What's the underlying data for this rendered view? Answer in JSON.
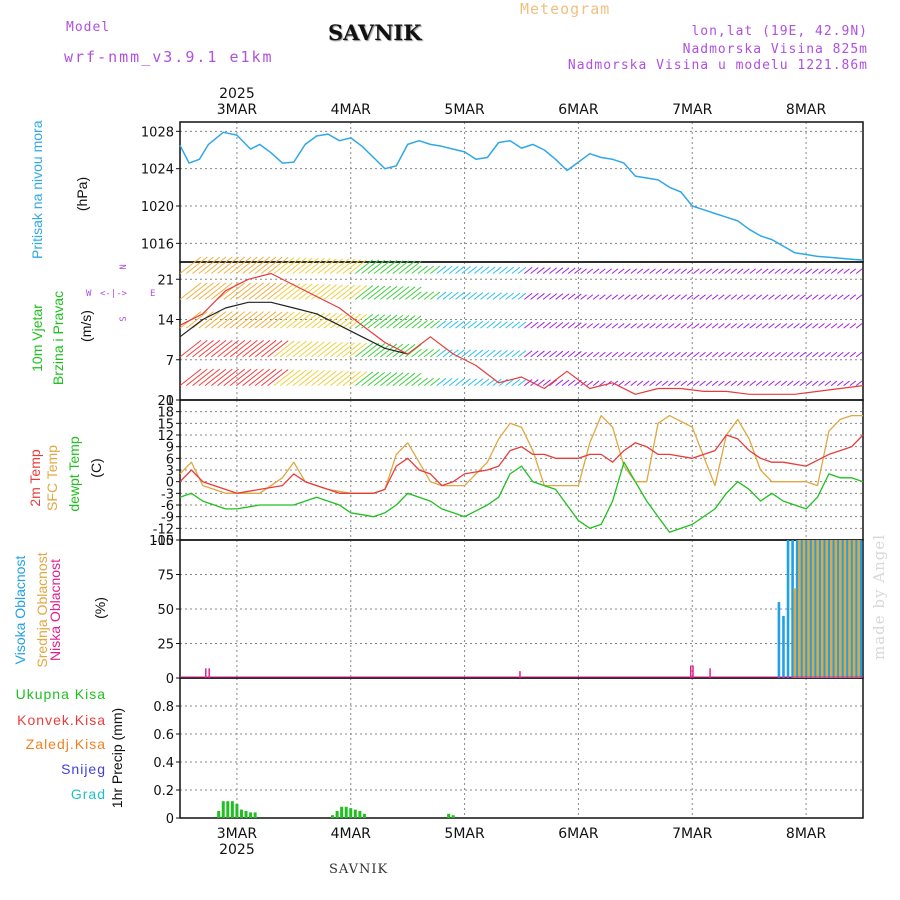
{
  "header": {
    "title": "SAVNIK",
    "meteogram": "Meteogram",
    "model_label": "Model",
    "model_name": "wrf-nmm_v3.9.1 e1km",
    "lonlat": "lon,lat (19E, 42.9N)",
    "elevation": "Nadmorska Visina 825m",
    "model_elevation": "Nadmorska Visina u modelu 1221.86m"
  },
  "footer": "SAVNIK",
  "made_by": "made by Angel",
  "x_axis": {
    "year": "2025",
    "day_labels": [
      "3MAR",
      "4MAR",
      "5MAR",
      "6MAR",
      "7MAR",
      "8MAR"
    ]
  },
  "panel_labels": {
    "pressure": [
      "Pritisak na nivou mora",
      "(hPa)"
    ],
    "wind": [
      "10m Vjetar",
      "Brzina i Pravac",
      "(m/s)"
    ],
    "compass": {
      "n": "N",
      "s": "S",
      "w": "W",
      "e": "E"
    },
    "temp": [
      "2m Temp",
      "SFC Temp",
      "dewpt Temp",
      "(C)"
    ],
    "cloud": [
      "Visoka Oblacnost",
      "Srednja Oblacnost",
      "Niska Oblacnost",
      "(%)"
    ],
    "precip": [
      "Ukupna Kisa",
      "Konvek.Kisa",
      "Zaledj.Kisa",
      "Snijeg",
      "Grad"
    ],
    "precip_axis": "1hr Precip (mm)"
  },
  "colors": {
    "pressure": "#30a8e8",
    "temp2m": "#e83c3c",
    "sfc": "#e0a840",
    "dewpt": "#20c020",
    "cloud_high": "#1fa0e8",
    "cloud_mid": "#e0a840",
    "cloud_low": "#e02090",
    "precip_total": "#20c020",
    "precip_conv": "#e83c3c",
    "precip_frz": "#f08020",
    "snow": "#4040e0",
    "hail": "#20c0c0",
    "title_purple": "#b050e0"
  },
  "chart_data": [
    {
      "type": "line",
      "name": "pressure",
      "ylabel": "Pritisak na nivou mora (hPa)",
      "ylim": [
        1014,
        1029
      ],
      "yticks": [
        1016,
        1020,
        1024,
        1028
      ],
      "x_unit": "days since 3MAR 00UTC",
      "xlim": [
        -0.5,
        5.5
      ],
      "series": [
        {
          "name": "Pritisak na nivou mora",
          "x": [
            -0.5,
            -0.42,
            -0.33,
            -0.25,
            -0.12,
            0,
            0.12,
            0.2,
            0.3,
            0.4,
            0.5,
            0.6,
            0.7,
            0.8,
            0.9,
            1.0,
            1.1,
            1.2,
            1.3,
            1.4,
            1.5,
            1.6,
            1.7,
            1.8,
            1.9,
            2.0,
            2.1,
            2.2,
            2.3,
            2.4,
            2.5,
            2.6,
            2.7,
            2.8,
            2.9,
            3.0,
            3.1,
            3.2,
            3.3,
            3.4,
            3.5,
            3.6,
            3.7,
            3.8,
            3.9,
            4.0,
            4.1,
            4.2,
            4.3,
            4.4,
            4.5,
            4.6,
            4.7,
            4.8,
            4.9,
            5.0,
            5.1,
            5.2,
            5.3,
            5.4,
            5.5
          ],
          "y": [
            1026.5,
            1024.6,
            1025.0,
            1026.6,
            1027.9,
            1027.6,
            1026.1,
            1026.6,
            1025.7,
            1024.6,
            1024.7,
            1026.6,
            1027.5,
            1027.7,
            1027.0,
            1027.3,
            1026.4,
            1025.2,
            1024.0,
            1024.3,
            1026.6,
            1027.0,
            1026.6,
            1026.4,
            1026.1,
            1025.8,
            1025.0,
            1025.2,
            1026.8,
            1027.0,
            1026.2,
            1026.6,
            1026.0,
            1025.0,
            1023.8,
            1024.7,
            1025.6,
            1025.2,
            1025.0,
            1024.6,
            1023.2,
            1023.0,
            1022.8,
            1022.0,
            1021.5,
            1020.0,
            1019.6,
            1019.2,
            1018.8,
            1018.4,
            1017.5,
            1016.8,
            1016.4,
            1015.7,
            1015.0,
            1014.8,
            1014.6,
            1014.5,
            1014.4,
            1014.3,
            1014.2
          ]
        }
      ]
    },
    {
      "type": "line",
      "name": "wind",
      "ylabel": "10m Vjetar Brzina i Pravac (m/s)",
      "ylim": [
        0,
        24
      ],
      "yticks": [
        0,
        7,
        14,
        21
      ],
      "xlim": [
        -0.5,
        5.5
      ],
      "series": [
        {
          "name": "speed",
          "x": [
            -0.5,
            -0.3,
            -0.1,
            0.1,
            0.3,
            0.5,
            0.7,
            0.9,
            1.1,
            1.3,
            1.5,
            1.7,
            1.9,
            2.1,
            2.3,
            2.5,
            2.7,
            2.9,
            3.1,
            3.3,
            3.5,
            3.7,
            3.9,
            4.1,
            4.3,
            4.5,
            4.7,
            4.9,
            5.1,
            5.3,
            5.5
          ],
          "y": [
            13,
            15,
            19,
            21,
            22,
            20,
            18,
            16,
            13,
            10,
            8,
            11,
            8,
            6,
            3,
            4,
            2,
            5,
            2,
            3,
            1,
            2,
            2,
            1.5,
            1.5,
            1,
            1,
            1,
            1.5,
            2,
            2.5
          ]
        },
        {
          "name": "gust",
          "x": [
            -0.5,
            -0.3,
            -0.1,
            0.1,
            0.3,
            0.5,
            0.7,
            0.9,
            1.1,
            1.3,
            1.5
          ],
          "y": [
            11,
            14,
            16,
            17,
            17,
            16,
            15,
            13,
            11,
            9,
            8
          ]
        }
      ]
    },
    {
      "type": "line",
      "name": "temperature",
      "ylabel": "(C)",
      "ylim": [
        -15,
        21
      ],
      "yticks": [
        -15,
        -12,
        -9,
        -6,
        -3,
        0,
        3,
        6,
        9,
        12,
        15,
        18,
        21
      ],
      "xlim": [
        -0.5,
        5.5
      ],
      "series": [
        {
          "name": "2m Temp",
          "x": [
            -0.5,
            -0.4,
            -0.3,
            -0.2,
            -0.1,
            0,
            0.2,
            0.4,
            0.5,
            0.6,
            0.7,
            0.8,
            0.9,
            1.0,
            1.2,
            1.3,
            1.4,
            1.5,
            1.6,
            1.7,
            1.8,
            1.9,
            2.0,
            2.2,
            2.3,
            2.4,
            2.5,
            2.6,
            2.7,
            2.8,
            3.0,
            3.1,
            3.2,
            3.3,
            3.4,
            3.5,
            3.6,
            3.7,
            3.8,
            4.0,
            4.2,
            4.3,
            4.4,
            4.5,
            4.6,
            4.7,
            4.8,
            5.0,
            5.2,
            5.3,
            5.4,
            5.5
          ],
          "y": [
            0,
            3,
            0,
            -1,
            -2,
            -3,
            -2,
            -1,
            2,
            0,
            -1,
            -2,
            -3,
            -3,
            -3,
            -2,
            4,
            6,
            3,
            2,
            -1,
            0,
            2,
            3,
            4,
            8,
            9,
            7,
            7,
            6,
            6,
            7,
            7,
            5,
            8,
            10,
            9,
            7,
            7,
            6,
            8,
            12,
            11,
            8,
            6,
            5,
            5,
            4,
            7,
            8,
            9,
            12
          ]
        },
        {
          "name": "SFC Temp",
          "x": [
            -0.5,
            -0.4,
            -0.3,
            -0.2,
            -0.1,
            0,
            0.2,
            0.3,
            0.4,
            0.5,
            0.6,
            0.7,
            0.8,
            1.0,
            1.2,
            1.3,
            1.4,
            1.5,
            1.6,
            1.7,
            1.8,
            1.9,
            2.0,
            2.2,
            2.3,
            2.4,
            2.5,
            2.6,
            2.7,
            2.8,
            3.0,
            3.1,
            3.2,
            3.3,
            3.4,
            3.5,
            3.6,
            3.7,
            3.8,
            4.0,
            4.2,
            4.3,
            4.4,
            4.5,
            4.6,
            4.7,
            4.8,
            5.0,
            5.1,
            5.2,
            5.3,
            5.4,
            5.5
          ],
          "y": [
            2,
            5,
            -1,
            -2,
            -3,
            -3,
            -3,
            -1,
            1,
            5,
            0,
            -1,
            -2,
            -3,
            -3,
            -2,
            7,
            10,
            5,
            0,
            -1,
            -1,
            -1,
            5,
            11,
            15,
            14,
            8,
            -1,
            -1,
            -1,
            10,
            17,
            14,
            4,
            0,
            0,
            15,
            17,
            14,
            -1,
            12,
            16,
            11,
            3,
            0,
            0,
            0,
            -1,
            13,
            16,
            17,
            17
          ]
        },
        {
          "name": "dewpt Temp",
          "x": [
            -0.5,
            -0.4,
            -0.3,
            -0.2,
            -0.1,
            0,
            0.2,
            0.4,
            0.5,
            0.6,
            0.7,
            0.8,
            0.9,
            1.0,
            1.2,
            1.3,
            1.4,
            1.5,
            1.6,
            1.7,
            1.8,
            1.9,
            2.0,
            2.2,
            2.3,
            2.4,
            2.5,
            2.6,
            2.7,
            2.8,
            3.0,
            3.1,
            3.2,
            3.3,
            3.4,
            3.5,
            3.6,
            3.7,
            3.8,
            4.0,
            4.2,
            4.3,
            4.4,
            4.5,
            4.6,
            4.7,
            4.8,
            5.0,
            5.1,
            5.2,
            5.3,
            5.4,
            5.5
          ],
          "y": [
            -4,
            -3,
            -5,
            -6,
            -7,
            -7,
            -6,
            -6,
            -6,
            -5,
            -4,
            -5,
            -6,
            -8,
            -9,
            -8,
            -6,
            -3,
            -4,
            -5,
            -7,
            -8,
            -9,
            -6,
            -4,
            2,
            4,
            0,
            -1,
            -2,
            -10,
            -12,
            -11,
            -5,
            5,
            0,
            -5,
            -9,
            -13,
            -11,
            -7,
            -3,
            0,
            -2,
            -5,
            -3,
            -5,
            -7,
            -4,
            2,
            1,
            1,
            0
          ]
        }
      ]
    },
    {
      "type": "bar",
      "name": "cloud",
      "ylabel": "(%)",
      "ylim": [
        0,
        100
      ],
      "yticks": [
        0,
        25,
        50,
        75,
        100
      ],
      "xlim": [
        -0.5,
        5.5
      ],
      "series": [
        {
          "name": "Visoka Oblacnost",
          "x": [
            4.75,
            4.79,
            4.83,
            4.87,
            4.91,
            4.95,
            4.99,
            5.03,
            5.07,
            5.11,
            5.15,
            5.19,
            5.23,
            5.27,
            5.31,
            5.35,
            5.39,
            5.43,
            5.47
          ],
          "y": [
            55,
            45,
            100,
            100,
            100,
            100,
            100,
            100,
            100,
            100,
            100,
            100,
            100,
            100,
            100,
            100,
            100,
            100,
            100
          ]
        },
        {
          "name": "Srednja Oblacnost",
          "x": [
            4.89,
            4.93,
            4.97,
            5.01,
            5.05,
            5.09,
            5.13,
            5.17,
            5.21,
            5.25,
            5.29,
            5.33,
            5.37,
            5.41,
            5.45
          ],
          "y": [
            65,
            100,
            100,
            100,
            100,
            100,
            100,
            100,
            100,
            100,
            100,
            100,
            100,
            100,
            100
          ]
        },
        {
          "name": "Niska Oblacnost",
          "x": [
            -0.28,
            -0.25,
            2.48,
            3.98,
            4.0,
            4.15
          ],
          "y": [
            7,
            7,
            5,
            9,
            9,
            7
          ]
        }
      ]
    },
    {
      "type": "bar",
      "name": "precip",
      "ylabel": "1hr Precip (mm)",
      "ylim": [
        0,
        1.0
      ],
      "yticks": [
        0,
        0.2,
        0.4,
        0.6,
        0.8
      ],
      "xlim": [
        -0.5,
        5.5
      ],
      "series": [
        {
          "name": "Ukupna Kisa",
          "x": [
            -0.16,
            -0.12,
            -0.08,
            -0.04,
            0,
            0.04,
            0.08,
            0.12,
            0.16,
            0.84,
            0.88,
            0.92,
            0.96,
            1.0,
            1.04,
            1.08,
            1.12,
            1.86,
            1.9
          ],
          "y": [
            0.05,
            0.12,
            0.12,
            0.12,
            0.1,
            0.06,
            0.05,
            0.04,
            0.04,
            0.02,
            0.05,
            0.08,
            0.08,
            0.07,
            0.06,
            0.05,
            0.03,
            0.03,
            0.02
          ]
        },
        {
          "name": "Konvek.Kisa",
          "x": [],
          "y": []
        },
        {
          "name": "Zaledj.Kisa",
          "x": [],
          "y": []
        },
        {
          "name": "Snijeg",
          "x": [],
          "y": []
        },
        {
          "name": "Grad",
          "x": [],
          "y": []
        }
      ]
    }
  ]
}
